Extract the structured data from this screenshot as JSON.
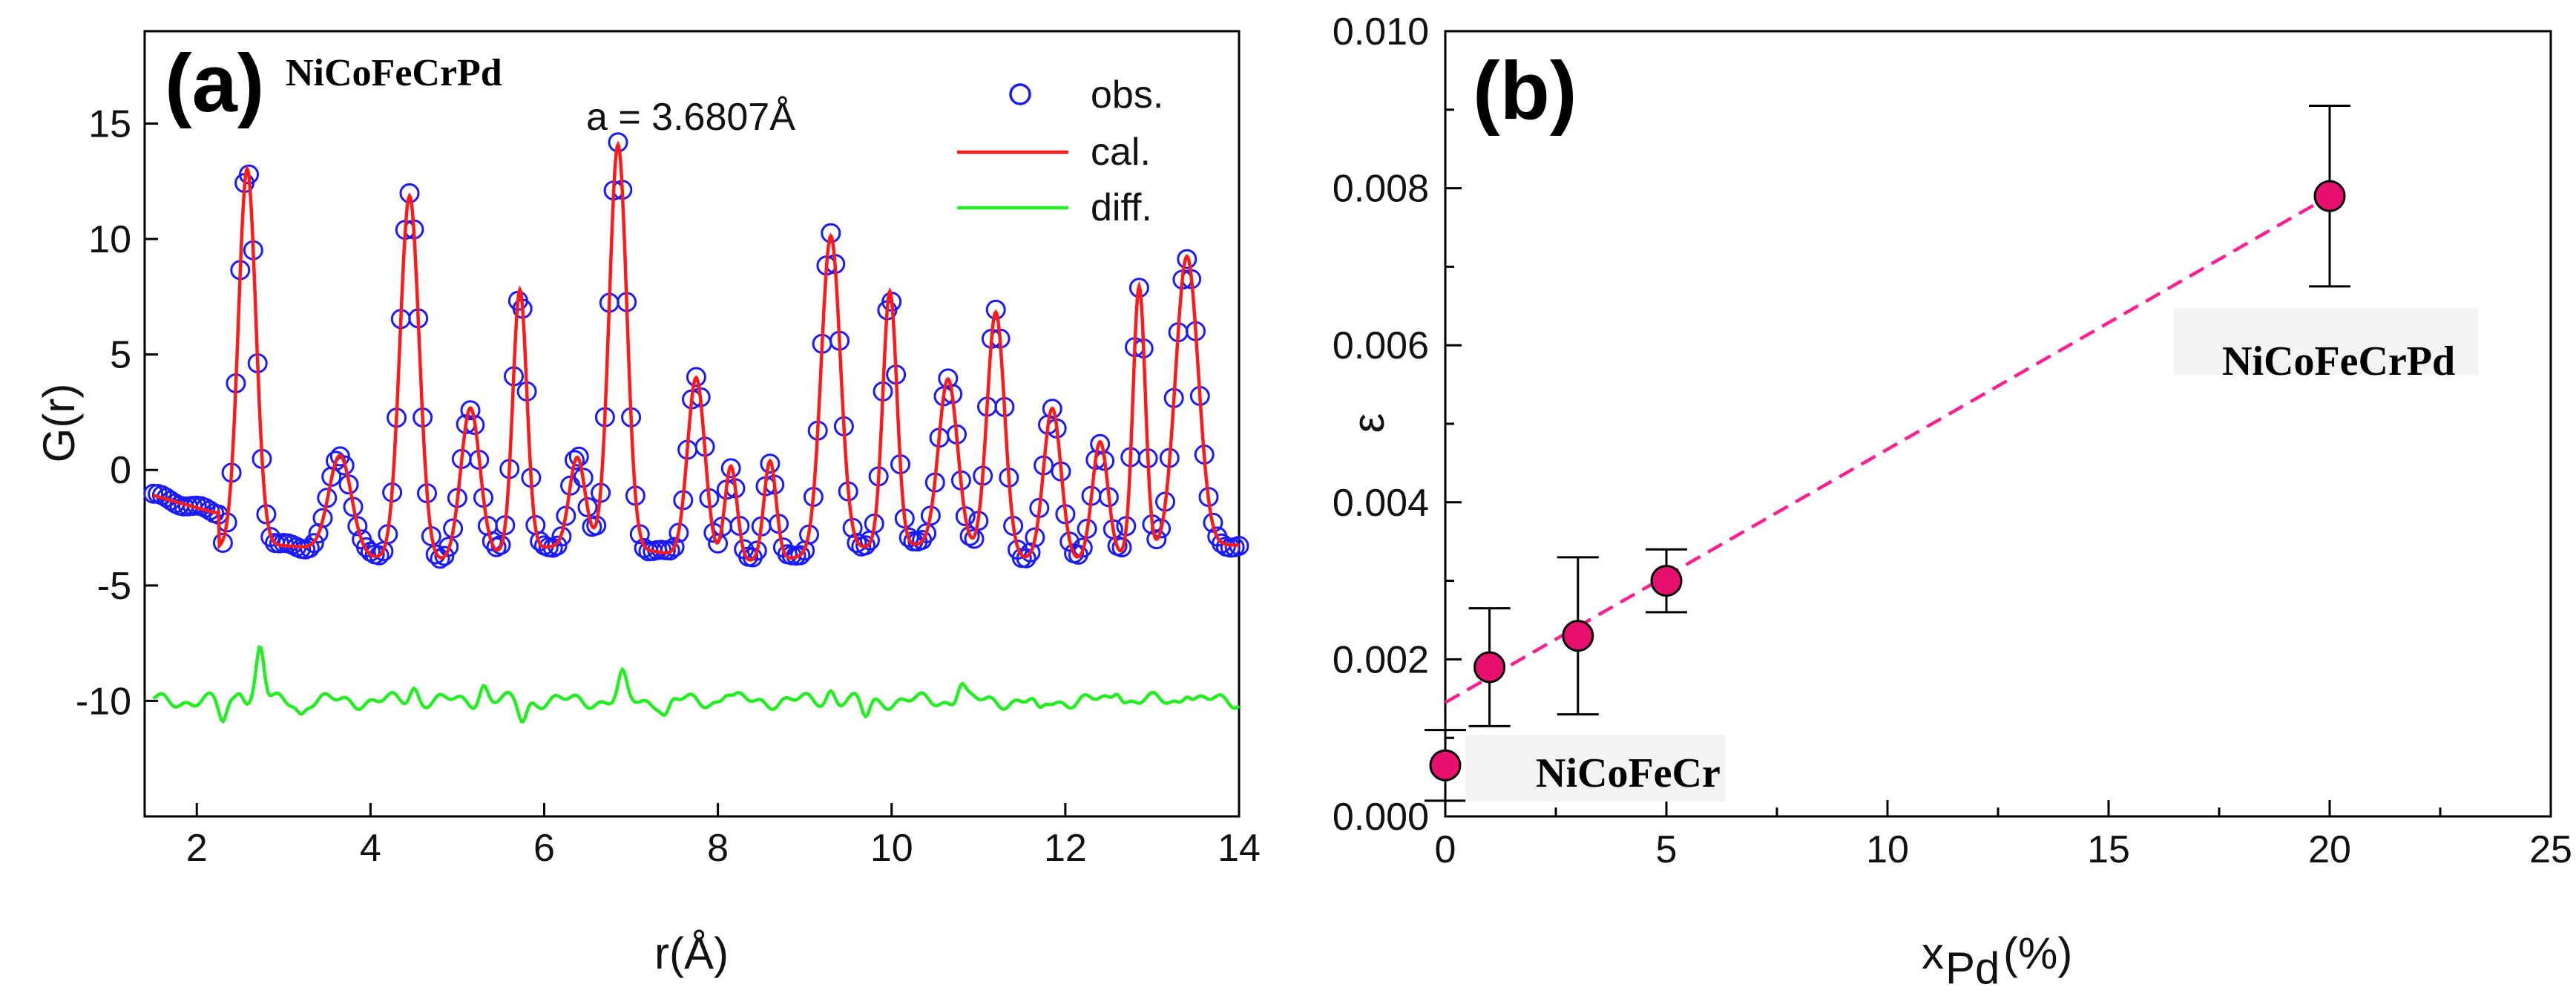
{
  "chart_data": [
    {
      "type": "line",
      "panel_label": "(a)",
      "compound": "NiCoFeCrPd",
      "annotation": "a = 3.6807Å",
      "xlabel": "r(Å)",
      "ylabel": "G(r)",
      "xlim": [
        1.4,
        14
      ],
      "ylim": [
        -15,
        19
      ],
      "xticks": [
        2,
        4,
        6,
        8,
        10,
        12,
        14
      ],
      "yticks": [
        -10,
        -5,
        0,
        5,
        10,
        15
      ],
      "legend": [
        "obs.",
        "cal.",
        "diff."
      ],
      "colors": {
        "obs": "#1a1aff",
        "cal": "#ff1a1a",
        "diff": "#22ee22"
      },
      "diff_offset": -10,
      "baseline": {
        "x": [
          1.5,
          2.25
        ],
        "y": [
          -1.1,
          -1.9
        ]
      },
      "peaks": {
        "x": [
          2.58,
          3.65,
          4.45,
          5.15,
          5.72,
          6.38,
          6.85,
          7.75,
          8.15,
          8.6,
          9.3,
          9.98,
          10.65,
          11.2,
          11.85,
          12.4,
          12.85,
          13.4
        ],
        "height": [
          16.3,
          4.2,
          15.8,
          6.5,
          11.3,
          3.8,
          17.4,
          7.8,
          4.1,
          4.3,
          13.7,
          11.0,
          7.3,
          10.5,
          6.6,
          5.1,
          11.6,
          12.6
        ],
        "width": [
          0.1,
          0.13,
          0.11,
          0.11,
          0.08,
          0.09,
          0.1,
          0.1,
          0.07,
          0.07,
          0.11,
          0.08,
          0.11,
          0.1,
          0.1,
          0.09,
          0.07,
          0.13
        ]
      },
      "diff_bumps": {
        "x": [
          2.3,
          2.5,
          2.73,
          3.2,
          4.5,
          5.3,
          5.75,
          6.9,
          7.4,
          8.1,
          9.3,
          9.7,
          10.8,
          11.7,
          12.6,
          13.4
        ],
        "amp": [
          -0.9,
          0.6,
          2.3,
          -0.5,
          0.6,
          0.7,
          -0.8,
          1.0,
          -0.6,
          0.4,
          0.5,
          -0.7,
          0.8,
          -0.6,
          0.6,
          0.5
        ]
      }
    },
    {
      "type": "scatter",
      "panel_label": "(b)",
      "xlabel_main": "x",
      "xlabel_sub": "Pd",
      "xlabel_unit": "(%)",
      "ylabel": "ε",
      "xlim": [
        0,
        25
      ],
      "ylim": [
        0,
        0.01
      ],
      "xticks": [
        0,
        5,
        10,
        15,
        20,
        25
      ],
      "yticks": [
        0.0,
        0.002,
        0.004,
        0.006,
        0.008,
        0.01
      ],
      "ytick_labels": [
        "0.000",
        "0.002",
        "0.004",
        "0.006",
        "0.008",
        "0.010"
      ],
      "points": {
        "x": [
          0,
          1,
          3,
          5,
          20
        ],
        "y": [
          0.00065,
          0.0019,
          0.0023,
          0.003,
          0.0079
        ],
        "err_low": [
          0.00045,
          0.00075,
          0.001,
          0.0004,
          0.00115
        ],
        "err_high": [
          0.00045,
          0.00075,
          0.001,
          0.0004,
          0.00115
        ]
      },
      "fit_line": {
        "x": [
          0,
          20
        ],
        "y": [
          0.00145,
          0.0079
        ]
      },
      "annotations": [
        "NiCoFeCr",
        "NiCoFeCrPd"
      ],
      "colors": {
        "marker": "#e8106e",
        "fit": "#ff1f8f"
      }
    }
  ]
}
